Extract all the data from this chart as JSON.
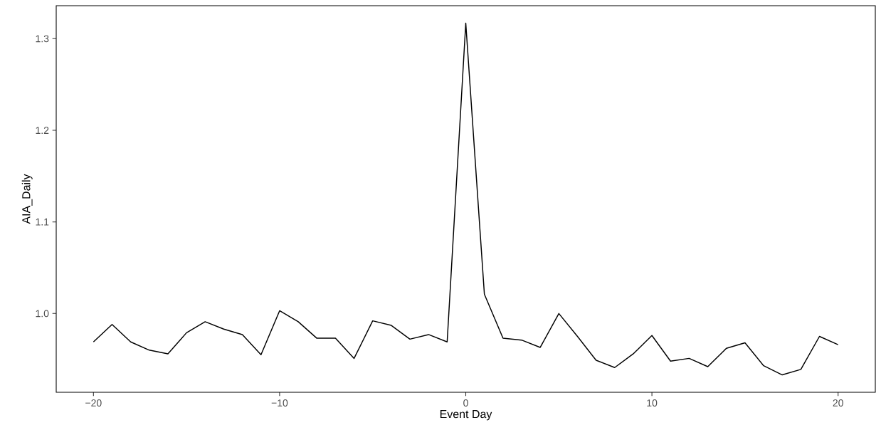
{
  "chart_data": {
    "type": "line",
    "xlabel": "Event Day",
    "ylabel": "AIA_Daily",
    "x": [
      -20,
      -19,
      -18,
      -17,
      -16,
      -15,
      -14,
      -13,
      -12,
      -11,
      -10,
      -9,
      -8,
      -7,
      -6,
      -5,
      -4,
      -3,
      -2,
      -1,
      0,
      1,
      2,
      3,
      4,
      5,
      6,
      7,
      8,
      9,
      10,
      11,
      12,
      13,
      14,
      15,
      16,
      17,
      18,
      19,
      20
    ],
    "values": [
      0.969,
      0.988,
      0.969,
      0.96,
      0.956,
      0.979,
      0.991,
      0.983,
      0.977,
      0.955,
      1.003,
      0.991,
      0.973,
      0.973,
      0.951,
      0.992,
      0.987,
      0.972,
      0.977,
      0.969,
      1.317,
      1.021,
      0.973,
      0.971,
      0.963,
      1.0,
      0.975,
      0.949,
      0.941,
      0.956,
      0.976,
      0.948,
      0.951,
      0.942,
      0.962,
      0.968,
      0.943,
      0.933,
      0.939,
      0.975,
      0.966
    ],
    "color": "#000000",
    "xlim": [
      -22,
      22
    ],
    "ylim": [
      0.914,
      1.336
    ],
    "xticks": [
      {
        "value": -20,
        "label": "−20"
      },
      {
        "value": -10,
        "label": "−10"
      },
      0,
      10,
      20
    ],
    "yticks": [
      {
        "value": 1.0,
        "label": "1.0"
      },
      1.1,
      1.2,
      1.3
    ],
    "grid": false,
    "marker": "none",
    "line_style": "solid"
  }
}
